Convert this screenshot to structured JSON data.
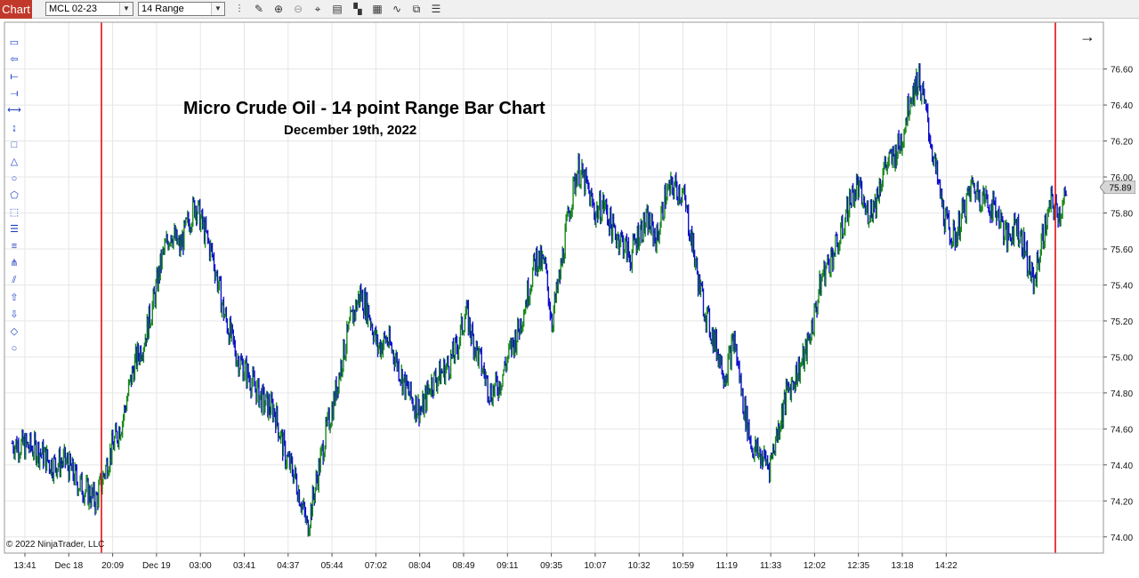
{
  "toolbar": {
    "chart_tab": "Chart",
    "instrument": "MCL 02-23",
    "period": "14 Range",
    "icons": [
      "bar-type-icon",
      "pencil-icon",
      "zoom-in-icon",
      "zoom-out-icon",
      "crosshair-icon",
      "data-box-icon",
      "chart-style-icon",
      "properties-icon",
      "indicators-icon",
      "strategies-icon",
      "templates-icon"
    ]
  },
  "drawing_tools": [
    "ruler-icon",
    "risk-reward-icon",
    "line-icon",
    "ray-icon",
    "extended-line-icon",
    "arrow-line-icon",
    "rectangle-icon",
    "triangle-icon",
    "ellipse-icon",
    "polygon-icon",
    "region-icon",
    "fibonacci-retracement-icon",
    "fibonacci-extension-icon",
    "andrews-pitchfork-icon",
    "parallel-channel-icon",
    "arrow-up-icon",
    "arrow-down-icon",
    "diamond-icon",
    "dot-icon"
  ],
  "chart_data": {
    "type": "bar",
    "title": "Micro Crude Oil - 14 point Range Bar Chart",
    "subtitle": "December 19th, 2022",
    "ylim": [
      73.9,
      76.85
    ],
    "yticks": [
      "76.60",
      "76.40",
      "76.20",
      "76.00",
      "75.80",
      "75.60",
      "75.40",
      "75.20",
      "75.00",
      "74.80",
      "74.60",
      "74.40",
      "74.20",
      "74.00"
    ],
    "xticks": [
      "13:41",
      "Dec 18",
      "20:09",
      "Dec 19",
      "03:00",
      "03:41",
      "04:37",
      "05:44",
      "07:02",
      "08:04",
      "08:49",
      "09:11",
      "09:35",
      "10:07",
      "10:32",
      "10:59",
      "11:19",
      "11:33",
      "12:02",
      "12:35",
      "13:18",
      "14:22"
    ],
    "current_price": "75.89",
    "up_color": "#1a8a1a",
    "down_color": "#1111cc",
    "session_line_color": "#dd0000",
    "grid": true,
    "close_path": [
      [
        0,
        74.52
      ],
      [
        18,
        74.5
      ],
      [
        30,
        74.48
      ],
      [
        45,
        74.4
      ],
      [
        60,
        74.42
      ],
      [
        75,
        74.3
      ],
      [
        95,
        74.2
      ],
      [
        110,
        74.45
      ],
      [
        125,
        74.65
      ],
      [
        138,
        74.95
      ],
      [
        150,
        75.1
      ],
      [
        160,
        75.3
      ],
      [
        170,
        75.55
      ],
      [
        180,
        75.7
      ],
      [
        190,
        75.6
      ],
      [
        200,
        75.75
      ],
      [
        208,
        75.85
      ],
      [
        218,
        75.7
      ],
      [
        228,
        75.55
      ],
      [
        240,
        75.25
      ],
      [
        255,
        75.0
      ],
      [
        270,
        74.88
      ],
      [
        285,
        74.75
      ],
      [
        298,
        74.7
      ],
      [
        310,
        74.45
      ],
      [
        320,
        74.35
      ],
      [
        328,
        74.2
      ],
      [
        335,
        74.05
      ],
      [
        345,
        74.3
      ],
      [
        355,
        74.55
      ],
      [
        365,
        74.75
      ],
      [
        375,
        75.0
      ],
      [
        385,
        75.2
      ],
      [
        395,
        75.35
      ],
      [
        405,
        75.25
      ],
      [
        415,
        75.05
      ],
      [
        425,
        75.1
      ],
      [
        435,
        75.0
      ],
      [
        445,
        74.85
      ],
      [
        455,
        74.75
      ],
      [
        465,
        74.7
      ],
      [
        475,
        74.85
      ],
      [
        485,
        74.9
      ],
      [
        495,
        74.95
      ],
      [
        505,
        75.05
      ],
      [
        515,
        75.25
      ],
      [
        523,
        75.1
      ],
      [
        533,
        74.95
      ],
      [
        543,
        74.8
      ],
      [
        553,
        74.85
      ],
      [
        563,
        75.0
      ],
      [
        575,
        75.15
      ],
      [
        585,
        75.35
      ],
      [
        595,
        75.55
      ],
      [
        605,
        75.5
      ],
      [
        613,
        75.2
      ],
      [
        622,
        75.45
      ],
      [
        632,
        75.8
      ],
      [
        642,
        76.05
      ],
      [
        652,
        75.95
      ],
      [
        662,
        75.8
      ],
      [
        672,
        75.85
      ],
      [
        682,
        75.7
      ],
      [
        692,
        75.65
      ],
      [
        702,
        75.55
      ],
      [
        712,
        75.7
      ],
      [
        722,
        75.75
      ],
      [
        732,
        75.65
      ],
      [
        742,
        75.9
      ],
      [
        752,
        75.95
      ],
      [
        762,
        75.9
      ],
      [
        770,
        75.7
      ],
      [
        780,
        75.4
      ],
      [
        790,
        75.2
      ],
      [
        800,
        75.05
      ],
      [
        810,
        74.9
      ],
      [
        820,
        75.1
      ],
      [
        830,
        74.75
      ],
      [
        840,
        74.5
      ],
      [
        850,
        74.45
      ],
      [
        860,
        74.4
      ],
      [
        870,
        74.6
      ],
      [
        880,
        74.8
      ],
      [
        890,
        74.9
      ],
      [
        900,
        75.0
      ],
      [
        910,
        75.2
      ],
      [
        920,
        75.45
      ],
      [
        930,
        75.55
      ],
      [
        940,
        75.65
      ],
      [
        950,
        75.85
      ],
      [
        960,
        75.95
      ],
      [
        970,
        75.8
      ],
      [
        980,
        75.85
      ],
      [
        990,
        76.05
      ],
      [
        1000,
        76.1
      ],
      [
        1010,
        76.2
      ],
      [
        1020,
        76.45
      ],
      [
        1030,
        76.55
      ],
      [
        1040,
        76.3
      ],
      [
        1050,
        76.0
      ],
      [
        1060,
        75.75
      ],
      [
        1070,
        75.65
      ],
      [
        1080,
        75.8
      ],
      [
        1090,
        75.95
      ],
      [
        1100,
        75.9
      ],
      [
        1110,
        75.85
      ],
      [
        1120,
        75.8
      ],
      [
        1130,
        75.65
      ],
      [
        1140,
        75.75
      ],
      [
        1150,
        75.6
      ],
      [
        1160,
        75.4
      ],
      [
        1170,
        75.65
      ],
      [
        1180,
        75.85
      ],
      [
        1190,
        75.8
      ],
      [
        1197,
        75.89
      ]
    ],
    "session_lines_x_px_ref": "script"
  },
  "overlay": {
    "copyright": "© 2022 NinjaTrader, LLC",
    "arrow_glyph": "→"
  }
}
